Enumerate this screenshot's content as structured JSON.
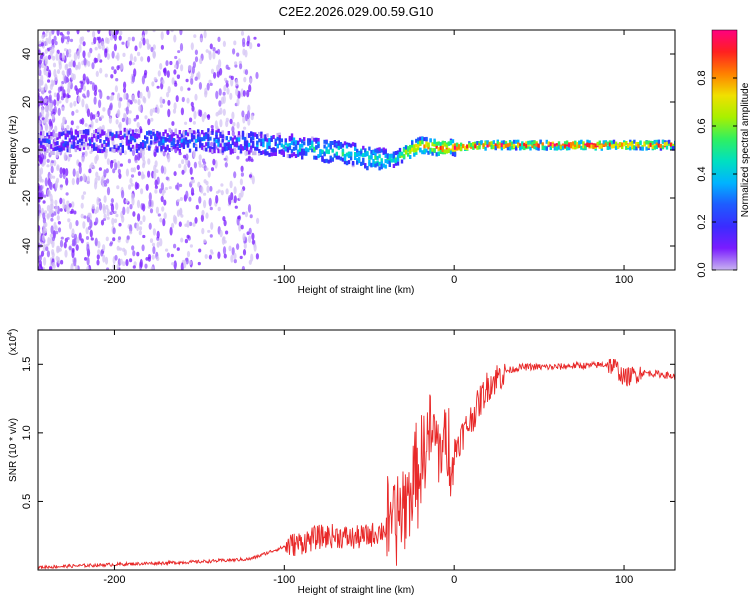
{
  "title": "C2E2.2026.029.00.59.G10",
  "chart_data": [
    {
      "type": "heatmap",
      "name": "spectrogram",
      "xlabel": "Height of straight line (km)",
      "ylabel": "Frequency (Hz)",
      "xlim": [
        -245,
        130
      ],
      "ylim": [
        -50,
        50
      ],
      "xticks": [
        -200,
        -100,
        0,
        100
      ],
      "yticks": [
        -40,
        -20,
        0,
        20,
        40
      ],
      "colorbar": {
        "label": "Normalized spectral amplitude",
        "range": [
          0,
          1
        ],
        "ticks": [
          "0.0",
          "0.2",
          "0.4",
          "0.6",
          "0.8"
        ],
        "colors": [
          "#c8b4f0",
          "#7a1cff",
          "#3a2cff",
          "#1e5cff",
          "#00b4ff",
          "#00e0c0",
          "#30f060",
          "#a8f000",
          "#f0e000",
          "#ff8000",
          "#ff2020",
          "#ff0080"
        ]
      },
      "ridge": {
        "x": [
          -245,
          -200,
          -150,
          -120,
          -100,
          -80,
          -60,
          -45,
          -35,
          -30,
          -20,
          -10,
          0,
          20,
          50,
          100,
          130
        ],
        "freq": [
          3,
          4,
          4,
          3,
          2,
          0,
          -2,
          -4,
          -4,
          -1,
          2,
          1,
          1,
          2,
          2,
          2,
          2
        ],
        "amplitude": [
          0.15,
          0.2,
          0.25,
          0.3,
          0.35,
          0.45,
          0.5,
          0.5,
          0.45,
          0.7,
          0.8,
          0.85,
          0.9,
          0.95,
          1.0,
          0.95,
          0.9
        ]
      }
    },
    {
      "type": "line",
      "name": "snr",
      "xlabel": "Height of straight line (km)",
      "ylabel": "SNR (10 * v/v)",
      "yscale_label": "(x10",
      "yscale_exponent": "4",
      "xlim": [
        -245,
        130
      ],
      "ylim": [
        0,
        1.75
      ],
      "xticks": [
        -200,
        -100,
        0,
        100
      ],
      "yticks": [
        "0.5",
        "1.0",
        "1.5"
      ],
      "color": "#e82828",
      "series": [
        {
          "name": "SNR",
          "x": [
            -245,
            -200,
            -150,
            -120,
            -100,
            -90,
            -80,
            -70,
            -60,
            -50,
            -40,
            -30,
            -25,
            -20,
            -15,
            -10,
            -5,
            0,
            10,
            20,
            30,
            40,
            50,
            60,
            70,
            80,
            90,
            95,
            100,
            110,
            120,
            130
          ],
          "y": [
            0.02,
            0.04,
            0.06,
            0.08,
            0.17,
            0.2,
            0.24,
            0.25,
            0.23,
            0.25,
            0.3,
            0.45,
            0.6,
            0.75,
            0.95,
            0.95,
            0.85,
            0.88,
            1.1,
            1.35,
            1.45,
            1.48,
            1.48,
            1.48,
            1.49,
            1.49,
            1.5,
            1.48,
            1.4,
            1.44,
            1.43,
            1.41
          ]
        }
      ]
    }
  ]
}
